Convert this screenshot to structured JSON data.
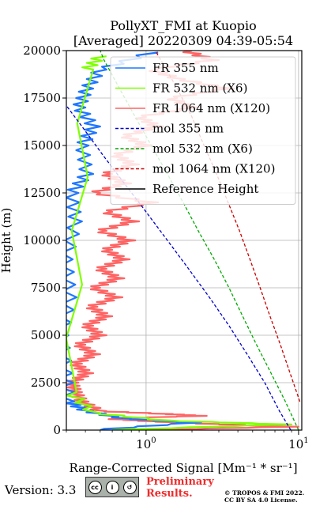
{
  "chart_data": {
    "type": "line",
    "title_line1": "PollyXT_FMI at Kuopio",
    "title_line2": "[Averaged] 20220309 04:39-05:54",
    "ylabel": "Height (m)",
    "xlabel": "Range-Corrected Signal [Mm⁻¹ * sr⁻¹]",
    "xscale": "log",
    "xlim": [
      0.3,
      10.5
    ],
    "ylim": [
      0,
      20000
    ],
    "yticks": [
      "0",
      "2500",
      "5000",
      "7500",
      "10000",
      "12500",
      "15000",
      "17500",
      "20000"
    ],
    "ytick_values": [
      0,
      2500,
      5000,
      7500,
      10000,
      12500,
      15000,
      17500,
      20000
    ],
    "xticks": [
      "10⁰",
      "10¹"
    ],
    "xtick_values": [
      1,
      10
    ],
    "grid": true,
    "legend_position": "upper-right",
    "legend": [
      {
        "label": "FR 355 nm",
        "color": "#1f77ff",
        "style": "solid"
      },
      {
        "label": "FR 532 nm (X6)",
        "color": "#80ff00",
        "style": "solid"
      },
      {
        "label": "FR 1064 nm (X120)",
        "color": "#ff6464",
        "style": "solid"
      },
      {
        "label": "mol 355 nm",
        "color": "#0000cc",
        "style": "dashed"
      },
      {
        "label": "mol 532 nm (X6)",
        "color": "#00aa00",
        "style": "dashed"
      },
      {
        "label": "mol 1064 nm (X120)",
        "color": "#cc0000",
        "style": "dashed"
      },
      {
        "label": "Reference Height",
        "color": "#000000",
        "style": "solid"
      }
    ],
    "series": [
      {
        "name": "mol 355 nm",
        "color": "#0000cc",
        "points": [
          [
            8.9,
            0
          ],
          [
            7.5,
            1000
          ],
          [
            6.0,
            2500
          ],
          [
            4.6,
            4000
          ],
          [
            3.5,
            5500
          ],
          [
            2.6,
            7000
          ],
          [
            1.9,
            8500
          ],
          [
            1.38,
            10000
          ],
          [
            1.0,
            11500
          ],
          [
            0.72,
            13000
          ],
          [
            0.52,
            14500
          ],
          [
            0.38,
            16000
          ],
          [
            0.3,
            17100
          ]
        ]
      },
      {
        "name": "mol 532 nm (X6)",
        "color": "#00aa00",
        "points": [
          [
            10.0,
            0
          ],
          [
            8.2,
            1500
          ],
          [
            6.6,
            3000
          ],
          [
            5.3,
            4500
          ],
          [
            4.3,
            6000
          ],
          [
            3.5,
            7500
          ],
          [
            2.8,
            9000
          ],
          [
            2.2,
            10500
          ],
          [
            1.75,
            12000
          ],
          [
            1.38,
            13500
          ],
          [
            1.08,
            15000
          ],
          [
            0.85,
            16500
          ],
          [
            0.67,
            18000
          ],
          [
            0.53,
            19500
          ],
          [
            0.5,
            20000
          ]
        ]
      },
      {
        "name": "mol 1064 nm (X120)",
        "color": "#cc0000",
        "points": [
          [
            10.2,
            1500
          ],
          [
            8.8,
            3000
          ],
          [
            7.6,
            4500
          ],
          [
            6.5,
            6000
          ],
          [
            5.6,
            7500
          ],
          [
            4.8,
            9000
          ],
          [
            4.1,
            10500
          ],
          [
            3.45,
            12000
          ],
          [
            2.9,
            13500
          ],
          [
            2.4,
            15000
          ],
          [
            2.0,
            16500
          ],
          [
            1.6,
            18000
          ],
          [
            1.25,
            19500
          ],
          [
            1.15,
            20000
          ]
        ]
      }
    ],
    "signal_profiles": [
      {
        "name": "FR 1064 nm (X120)",
        "color": "#ff6464",
        "points": [
          [
            1.0,
            0
          ],
          [
            10.0,
            180
          ],
          [
            3.0,
            320
          ],
          [
            1.2,
            460
          ],
          [
            0.62,
            600
          ],
          [
            2.5,
            750
          ],
          [
            1.5,
            850
          ],
          [
            0.55,
            1000
          ],
          [
            0.42,
            1500
          ],
          [
            0.38,
            2000
          ],
          [
            0.36,
            2500
          ],
          [
            0.45,
            3000
          ],
          [
            0.38,
            3500
          ],
          [
            0.5,
            4000
          ],
          [
            0.4,
            4500
          ],
          [
            0.55,
            5000
          ],
          [
            0.45,
            5500
          ],
          [
            0.6,
            6000
          ],
          [
            0.48,
            6500
          ],
          [
            0.7,
            7000
          ],
          [
            0.5,
            7500
          ],
          [
            0.72,
            8000
          ],
          [
            0.55,
            8500
          ],
          [
            0.78,
            9000
          ],
          [
            0.6,
            9500
          ],
          [
            0.85,
            10000
          ],
          [
            0.55,
            10500
          ],
          [
            0.9,
            11000
          ],
          [
            0.6,
            11500
          ],
          [
            1.2,
            12000
          ],
          [
            0.5,
            12500
          ],
          [
            0.8,
            13000
          ],
          [
            0.6,
            13500
          ],
          [
            0.9,
            14000
          ],
          [
            0.7,
            14500
          ],
          [
            1.1,
            15000
          ],
          [
            0.8,
            15500
          ],
          [
            1.3,
            16000
          ],
          [
            1.0,
            16500
          ],
          [
            2.2,
            17000
          ],
          [
            1.6,
            17500
          ],
          [
            3.8,
            18000
          ],
          [
            1.8,
            18500
          ],
          [
            1.2,
            19000
          ],
          [
            3.0,
            19500
          ],
          [
            2.0,
            20000
          ]
        ]
      },
      {
        "name": "FR 355 nm",
        "color": "#1f77ff",
        "points": [
          [
            0.5,
            0
          ],
          [
            2.3,
            400
          ],
          [
            0.8,
            600
          ],
          [
            0.45,
            1000
          ],
          [
            0.34,
            1500
          ],
          [
            0.33,
            3000
          ],
          [
            0.31,
            5000
          ],
          [
            0.35,
            7000
          ],
          [
            0.33,
            9000
          ],
          [
            0.38,
            11000
          ],
          [
            0.36,
            12500
          ],
          [
            0.45,
            13500
          ],
          [
            0.42,
            15000
          ],
          [
            0.5,
            16000
          ],
          [
            0.4,
            17000
          ],
          [
            0.45,
            18000
          ],
          [
            0.55,
            19000
          ],
          [
            1.2,
            19900
          ]
        ]
      },
      {
        "name": "FR 532 nm (X6)",
        "color": "#80ff00",
        "points": [
          [
            0.6,
            0
          ],
          [
            9.0,
            300
          ],
          [
            1.5,
            500
          ],
          [
            0.5,
            900
          ],
          [
            0.35,
            2000
          ],
          [
            0.45,
            19000
          ],
          [
            0.55,
            19700
          ]
        ]
      }
    ]
  },
  "footer": {
    "version": "Version: 3.3",
    "license_badge": "BY SA",
    "preliminary_line1": "Preliminary",
    "preliminary_line2": "Results.",
    "copyright_line1": "© TROPOS & FMI 2022.",
    "copyright_line2": "CC BY SA 4.0 License."
  }
}
